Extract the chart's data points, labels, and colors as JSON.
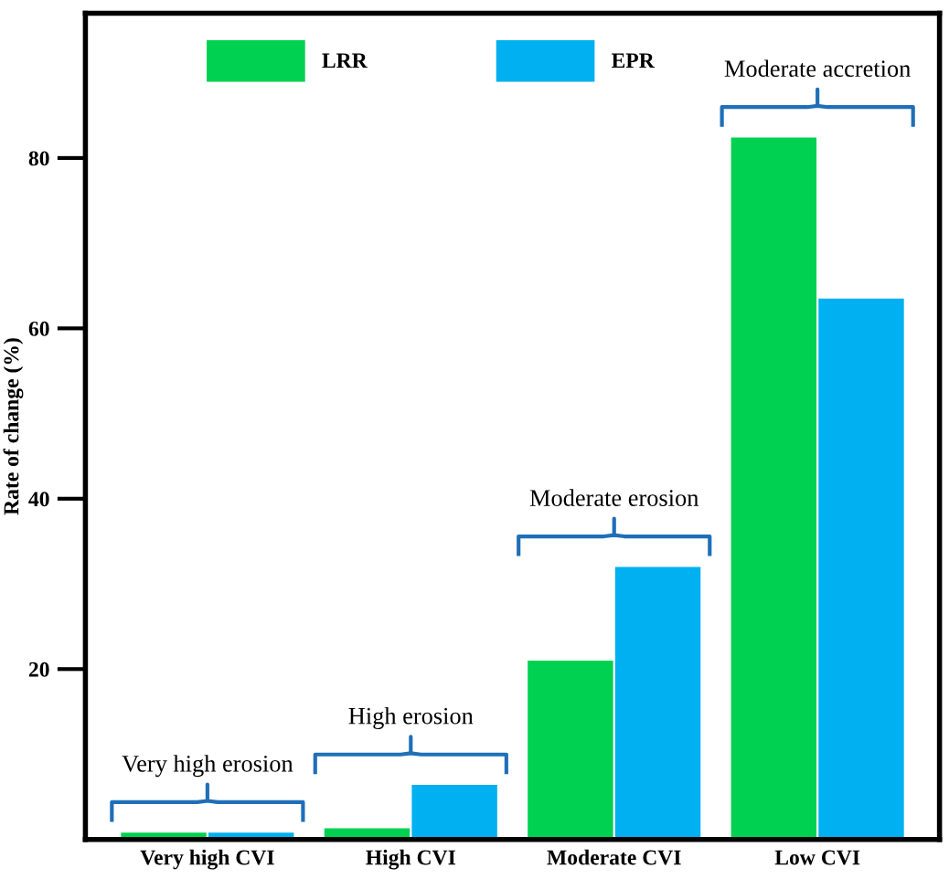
{
  "chart_data": {
    "type": "bar",
    "ylabel": "Rate of change (%)",
    "categories": [
      "Very high CVI",
      "High CVI",
      "Moderate CVI",
      "Low CVI"
    ],
    "series": [
      {
        "name": "LRR",
        "color": "#00d150",
        "values": [
          0.8,
          1.3,
          21,
          82.4
        ]
      },
      {
        "name": "EPR",
        "color": "#00b0f0",
        "values": [
          0.8,
          6.4,
          32,
          63.5
        ]
      }
    ],
    "ylim": [
      0,
      97
    ],
    "yticks": [
      20,
      40,
      60,
      80
    ],
    "grid": false,
    "legend": "top left",
    "annotations": [
      "Very high erosion",
      "High erosion",
      "Moderate erosion",
      "Moderate accretion"
    ]
  }
}
